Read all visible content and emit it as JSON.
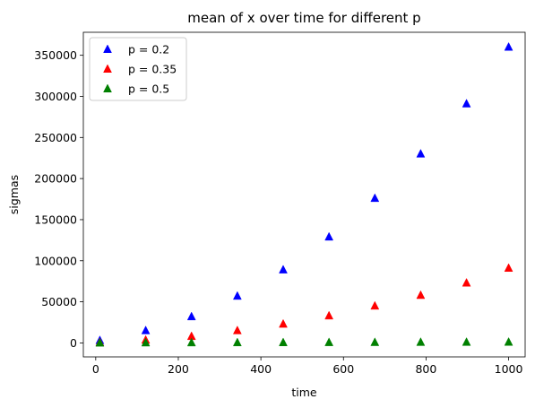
{
  "chart_data": {
    "type": "scatter",
    "title": "mean of x over time for different p",
    "xlabel": "time",
    "ylabel": "sigmas",
    "xlim": [
      -30,
      1040
    ],
    "ylim": [
      -17000,
      378000
    ],
    "x_ticks": [
      0,
      200,
      400,
      600,
      800,
      1000
    ],
    "y_ticks": [
      0,
      50000,
      100000,
      150000,
      200000,
      250000,
      300000,
      350000
    ],
    "x": [
      10,
      121,
      232,
      343,
      454,
      565,
      676,
      787,
      898,
      1000
    ],
    "grid": false,
    "legend_position": "top-left",
    "marker": "triangle-up",
    "series": [
      {
        "name": "p = 0.2",
        "color": "#0000ff",
        "values": [
          3000,
          15000,
          32000,
          57000,
          89000,
          129000,
          176000,
          230000,
          291000,
          360000
        ]
      },
      {
        "name": "p = 0.35",
        "color": "#ff0000",
        "values": [
          500,
          3500,
          8000,
          15000,
          23000,
          33000,
          45000,
          58000,
          73000,
          91000
        ]
      },
      {
        "name": "p = 0.5",
        "color": "#008000",
        "values": [
          0,
          200,
          300,
          400,
          500,
          600,
          700,
          800,
          900,
          1000
        ]
      }
    ]
  }
}
